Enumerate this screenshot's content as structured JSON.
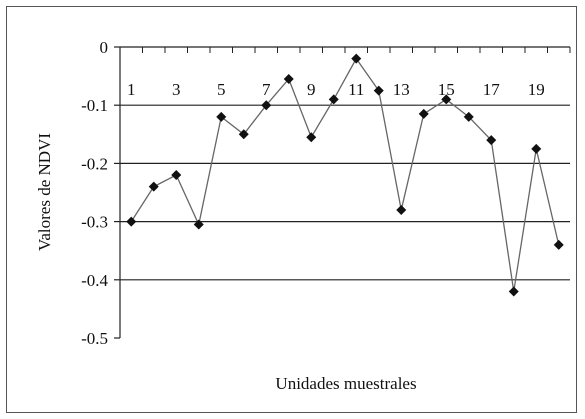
{
  "chart_data": {
    "type": "line",
    "xlabel": "Unidades muestrales",
    "ylabel": "Valores de NDVI",
    "ylim": [
      -0.5,
      0
    ],
    "yticks": [
      0,
      -0.1,
      -0.2,
      -0.3,
      -0.4,
      -0.5
    ],
    "ytick_labels": [
      "0",
      "-0.1",
      "-0.2",
      "-0.3",
      "-0.4",
      "-0.5"
    ],
    "xticks_labeled": [
      1,
      3,
      5,
      7,
      9,
      11,
      13,
      15,
      17,
      19
    ],
    "x": [
      1,
      2,
      3,
      4,
      5,
      6,
      7,
      8,
      9,
      10,
      11,
      12,
      13,
      14,
      15,
      16,
      17,
      18,
      19,
      20
    ],
    "values": [
      -0.3,
      -0.24,
      -0.22,
      -0.305,
      -0.12,
      -0.15,
      -0.1,
      -0.055,
      -0.155,
      -0.09,
      -0.02,
      -0.075,
      -0.28,
      -0.115,
      -0.09,
      -0.12,
      -0.16,
      -0.42,
      -0.175,
      -0.34
    ],
    "grid": true,
    "legend": "none",
    "line_color": "#666666",
    "marker_color": "#111111"
  }
}
